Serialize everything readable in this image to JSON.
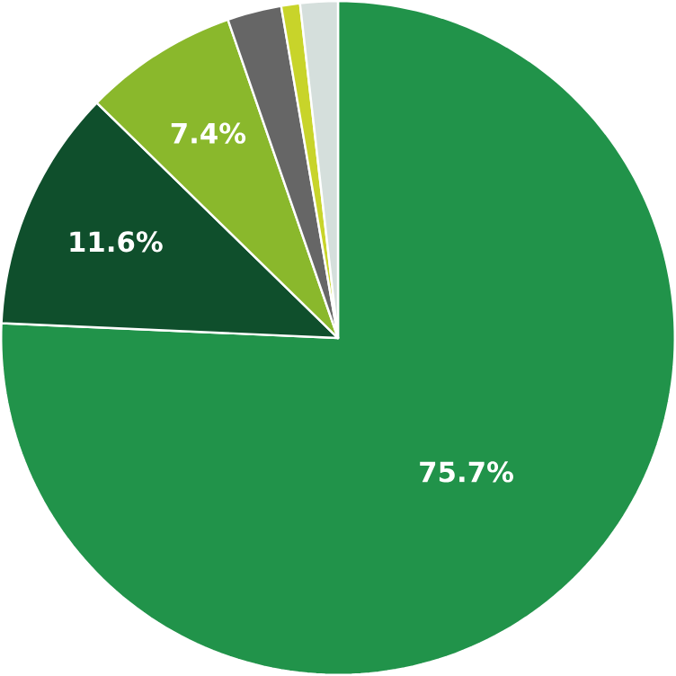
{
  "chart_data": {
    "type": "pie",
    "categories": [
      null,
      null,
      null,
      null,
      null,
      null
    ],
    "values": [
      75.7,
      11.6,
      7.4,
      2.6,
      0.9,
      1.8
    ],
    "colors": [
      "#21934a",
      "#0f4f2c",
      "#8ab82c",
      "#666666",
      "#c8d42a",
      "#d5dfdc"
    ],
    "value_labels": [
      "75.7%",
      "11.6%",
      "7.4%",
      null,
      null,
      null
    ]
  }
}
